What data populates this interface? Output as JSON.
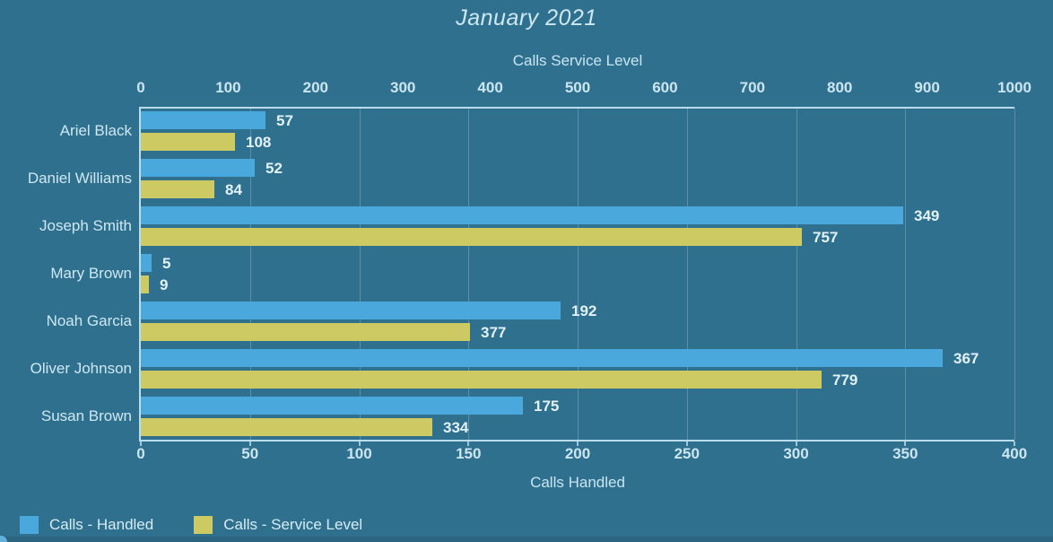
{
  "title": "January 2021",
  "chart_data": {
    "type": "bar",
    "orientation": "horizontal",
    "title": "January 2021",
    "categories": [
      "Ariel Black",
      "Daniel Williams",
      "Joseph Smith",
      "Mary Brown",
      "Noah Garcia",
      "Oliver Johnson",
      "Susan Brown"
    ],
    "series": [
      {
        "name": "Calls - Handled",
        "axis": "bottom",
        "color": "#4AA8DD",
        "values": [
          57,
          52,
          349,
          5,
          192,
          367,
          175
        ]
      },
      {
        "name": "Calls - Service Level",
        "axis": "top",
        "color": "#CDC963",
        "values": [
          108,
          84,
          757,
          9,
          377,
          779,
          334
        ]
      }
    ],
    "axes": {
      "top": {
        "title": "Calls Service Level",
        "min": 0,
        "max": 1000,
        "step": 100,
        "ticks": [
          0,
          100,
          200,
          300,
          400,
          500,
          600,
          700,
          800,
          900,
          1000
        ]
      },
      "bottom": {
        "title": "Calls Handled",
        "min": 0,
        "max": 400,
        "step": 50,
        "ticks": [
          0,
          50,
          100,
          150,
          200,
          250,
          300,
          350,
          400
        ]
      }
    },
    "grid": "vertical-lines-at-bottom-axis-ticks",
    "legend_position": "bottom-left",
    "value_labels": "right-of-bar-end"
  },
  "colors": {
    "background": "#30708F",
    "bar_handled": "#4AA8DD",
    "bar_service_level": "#CDC963",
    "axis_line": "#B9DDED",
    "gridline": "rgba(222,240,248,0.25)",
    "text": "#CDE8F3",
    "value_text": "#E2F2FA",
    "bottom_strip": "#2B647F"
  }
}
